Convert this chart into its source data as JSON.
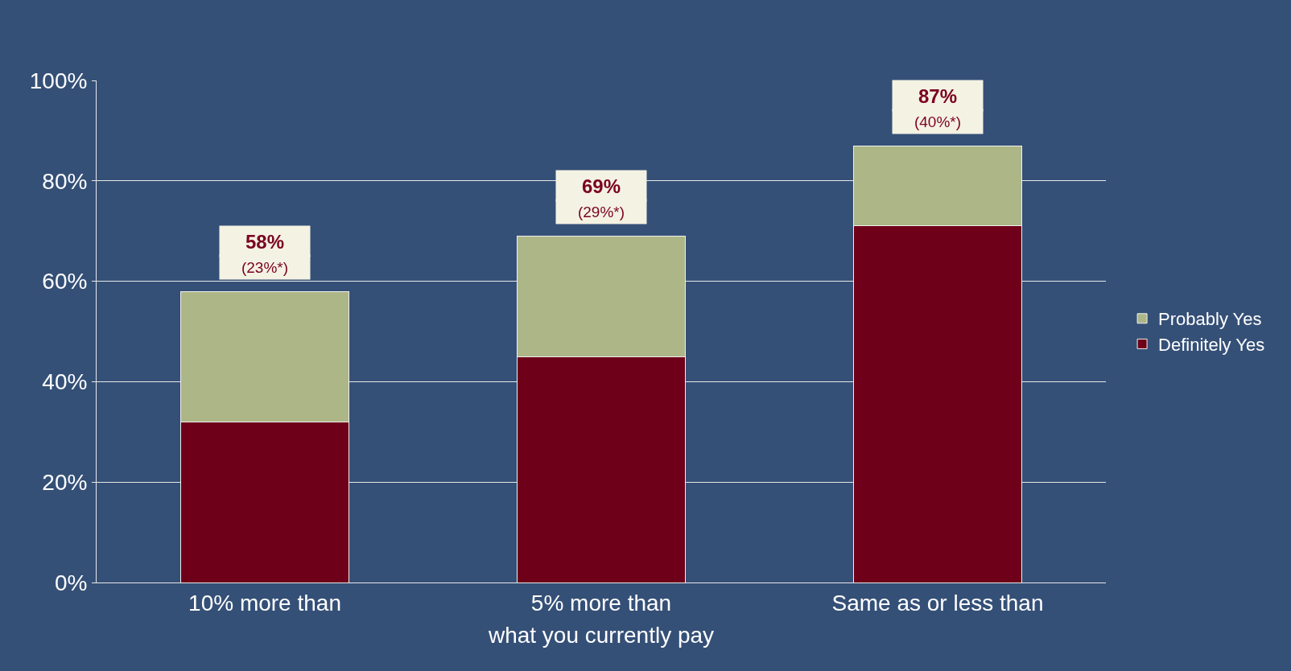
{
  "chart_data": {
    "type": "bar",
    "stacked": true,
    "xlabel": "what you currently pay",
    "categories": [
      "10% more than",
      "5% more than",
      "Same as or less than"
    ],
    "series": [
      {
        "name": "Definitely Yes",
        "color": "#6e0019",
        "values": [
          32,
          45,
          71
        ]
      },
      {
        "name": "Probably Yes",
        "color": "#adb687",
        "values": [
          26,
          24,
          16
        ]
      }
    ],
    "totals": [
      "58%",
      "69%",
      "87%"
    ],
    "annotations": [
      {
        "text": "(23%*)",
        "x": "10% more than",
        "y": 58
      },
      {
        "text": "(29%*)",
        "x": "5% more than",
        "y": 69
      },
      {
        "text": "(40%*)",
        "x": "Same as or less than",
        "y": 87
      }
    ],
    "ylim": [
      0,
      100
    ],
    "yticks": [
      {
        "value": 0,
        "label": "0%"
      },
      {
        "value": 20,
        "label": "20%"
      },
      {
        "value": 40,
        "label": "40%"
      },
      {
        "value": 60,
        "label": "60%"
      },
      {
        "value": 80,
        "label": "80%"
      },
      {
        "value": 100,
        "label": "100%"
      }
    ],
    "grid": "y",
    "legend": "right"
  }
}
